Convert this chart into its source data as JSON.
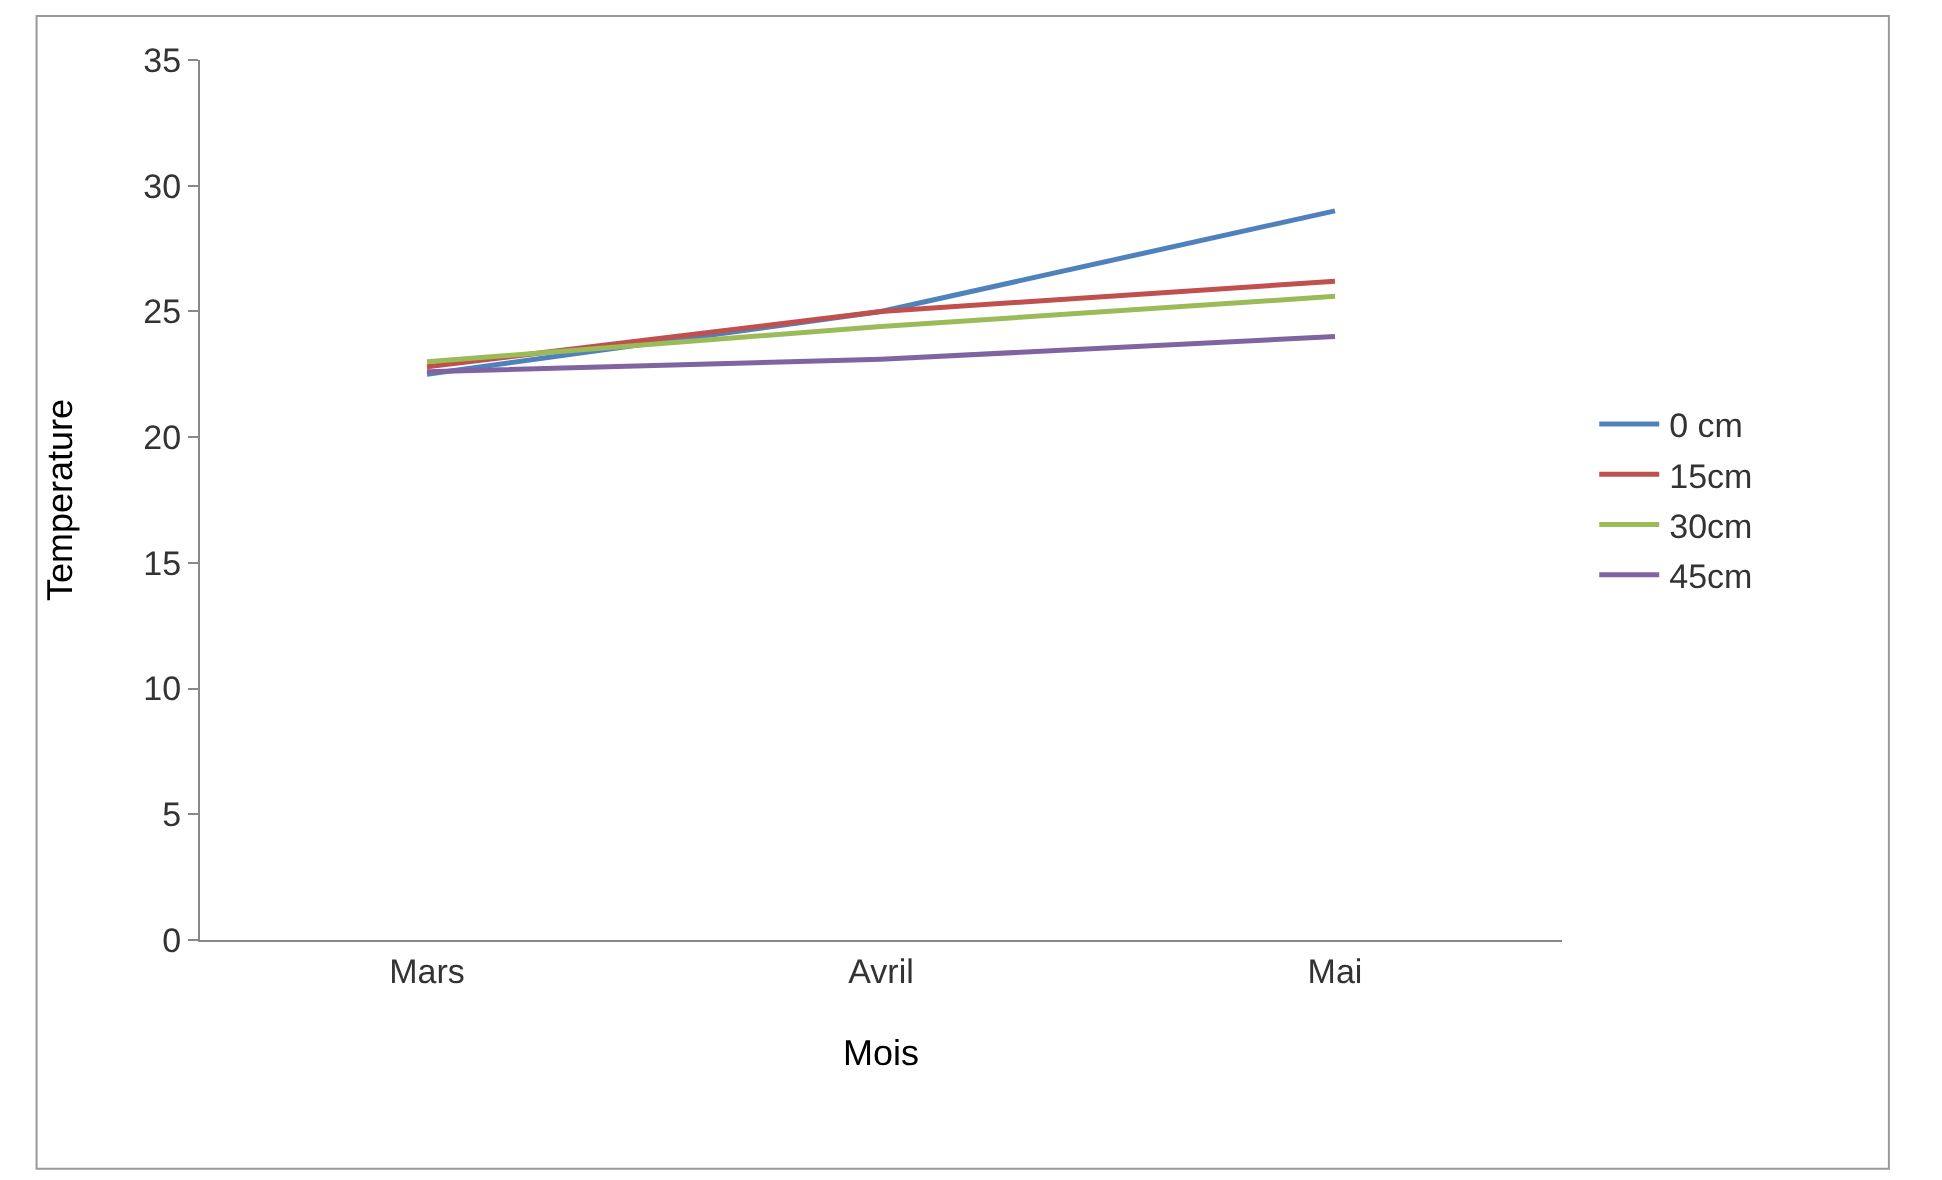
{
  "chart_data": {
    "type": "line",
    "xlabel": "Mois",
    "ylabel": "Temperature",
    "categories": [
      "Mars",
      "Avril",
      "Mai"
    ],
    "series": [
      {
        "name": "0 cm",
        "color": "#4f81bd",
        "values": [
          22.5,
          25.0,
          29.0
        ]
      },
      {
        "name": "15cm",
        "color": "#c0504d",
        "values": [
          22.8,
          25.0,
          26.2
        ]
      },
      {
        "name": "30cm",
        "color": "#9bbb59",
        "values": [
          23.0,
          24.4,
          25.6
        ]
      },
      {
        "name": "45cm",
        "color": "#8064a2",
        "values": [
          22.6,
          23.1,
          24.0
        ]
      }
    ],
    "ylim": [
      0,
      35
    ],
    "yticks": [
      0,
      5,
      10,
      15,
      20,
      25,
      30,
      35
    ],
    "legend": "right",
    "marker": "none",
    "line_style": "solid"
  }
}
